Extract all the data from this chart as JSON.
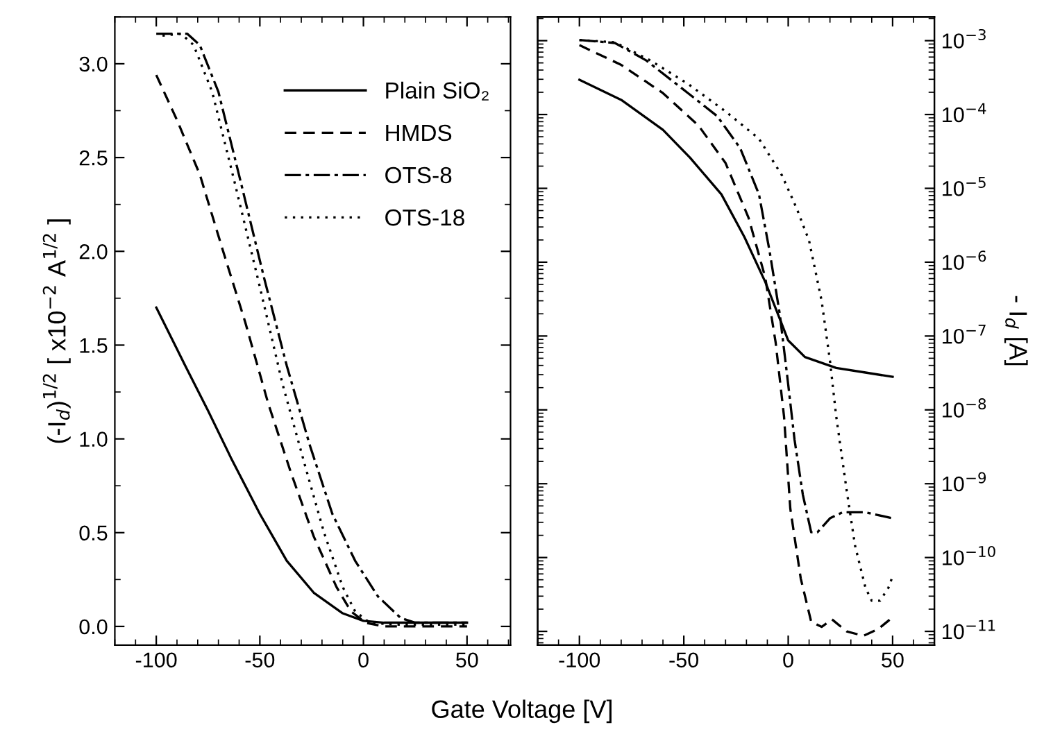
{
  "chart_data": [
    {
      "type": "line",
      "xlabel": "Gate Voltage [V]",
      "ylabel": "(-I$_{d}$)$^{1/2}$ [ x10$^{−2}$ A$^{1/2}$ ]",
      "xlim": [
        -120,
        71
      ],
      "xticks": [
        -100,
        -50,
        0,
        50
      ],
      "ylim": [
        -0.1,
        3.25
      ],
      "yticks": [
        {
          "value": 0,
          "label": "0.0"
        },
        0.5,
        {
          "value": 1,
          "label": "1.0"
        },
        1.5,
        {
          "value": 2,
          "label": "2.0"
        },
        2.5,
        {
          "value": 3,
          "label": "3.0"
        }
      ],
      "legend": "top right",
      "grid": false,
      "tick_labels": true,
      "series": [
        {
          "name": "Plain SiO₂",
          "color": "#000000",
          "line_style": "solid",
          "x": [
            -100,
            -86,
            -75,
            -64,
            -50,
            -37,
            -24,
            -10,
            0,
            10,
            20,
            30,
            40,
            50
          ],
          "values": [
            1.7,
            1.39,
            1.15,
            0.9,
            0.6,
            0.35,
            0.18,
            0.07,
            0.03,
            0.02,
            0.02,
            0.02,
            0.02,
            0.02
          ]
        },
        {
          "name": "HMDS",
          "color": "#000000",
          "line_style": "dashed",
          "x": [
            -100,
            -90,
            -79,
            -68,
            -57,
            -46,
            -35,
            -24,
            -13,
            -6,
            1,
            10,
            20,
            30,
            40,
            50
          ],
          "values": [
            2.94,
            2.7,
            2.41,
            2.01,
            1.62,
            1.19,
            0.82,
            0.48,
            0.21,
            0.08,
            0.02,
            0.0,
            0.0,
            0.0,
            0.0,
            0.0
          ]
        },
        {
          "name": "OTS-8",
          "color": "#000000",
          "line_style": "dashdot",
          "x": [
            -100,
            -85,
            -79,
            -70,
            -59,
            -48,
            -37,
            -26,
            -15,
            -4,
            7,
            18,
            25,
            35,
            50
          ],
          "values": [
            3.16,
            3.16,
            3.1,
            2.85,
            2.36,
            1.86,
            1.39,
            0.97,
            0.6,
            0.35,
            0.16,
            0.045,
            0.02,
            0.02,
            0.02
          ]
        },
        {
          "name": "OTS-18",
          "color": "#000000",
          "line_style": "dotted",
          "x": [
            -97,
            -88,
            -82,
            -73,
            -62,
            -50,
            -39,
            -28,
            -19,
            -10,
            -4,
            3,
            15,
            30,
            50
          ],
          "values": [
            3.15,
            3.16,
            3.1,
            2.85,
            2.36,
            1.81,
            1.29,
            0.85,
            0.5,
            0.21,
            0.08,
            0.02,
            0.01,
            0.01,
            0.01
          ]
        }
      ]
    },
    {
      "type": "line",
      "y2label": "- I$_{d}$ [A]",
      "log": "y2",
      "tick_labels": "y2",
      "xlim": [
        -120,
        70
      ],
      "xticks": [
        -100,
        -50,
        0,
        50
      ],
      "y2lim": [
        6.5e-12,
        0.0021
      ],
      "y2ticks": [
        {
          "value": 0.001,
          "label": "10$^{−3}$"
        },
        {
          "value": 0.0001,
          "label": "10$^{−4}$"
        },
        {
          "value": 1e-05,
          "label": "10$^{−5}$"
        },
        {
          "value": 1e-06,
          "label": "10$^{−6}$"
        },
        {
          "value": 1e-07,
          "label": "10$^{−7}$"
        },
        {
          "value": 1e-08,
          "label": "10$^{−8}$"
        },
        {
          "value": 1e-09,
          "label": "10$^{−9}$"
        },
        {
          "value": 1e-10,
          "label": "10$^{−10}$"
        },
        {
          "value": 1e-11,
          "label": "10$^{−11}$"
        }
      ],
      "grid": false,
      "legend": false,
      "series": [
        {
          "axis": "y2",
          "color": "#000000",
          "line_style": "solid",
          "x": [
            -100,
            -80,
            -60,
            -47,
            -32,
            -21,
            -11,
            -4,
            0,
            8,
            23,
            37,
            50
          ],
          "values": [
            0.000295,
            0.000158,
            6.2e-05,
            2.6e-05,
            8.3e-06,
            2.2e-06,
            5.4e-07,
            1.7e-07,
            8.7e-08,
            5.2e-08,
            3.7e-08,
            3.2e-08,
            2.8e-08
          ]
        },
        {
          "axis": "y2",
          "color": "#000000",
          "line_style": "dashed",
          "x": [
            -100,
            -80,
            -60,
            -43,
            -30,
            -19,
            -11,
            -6,
            -2,
            1,
            6,
            11,
            16,
            21,
            28,
            36,
            43,
            50
          ],
          "values": [
            0.00087,
            0.00047,
            0.000195,
            7.1e-05,
            2.2e-05,
            4e-06,
            6.2e-07,
            8.1e-08,
            8.1e-09,
            4.6e-10,
            5.2e-11,
            1.35e-11,
            1.15e-11,
            1.45e-11,
            1e-11,
            8.7e-12,
            1.07e-11,
            1.55e-11
          ]
        },
        {
          "axis": "y2",
          "color": "#000000",
          "line_style": "dashdot",
          "x": [
            -100,
            -83,
            -68,
            -48,
            -34,
            -23,
            -14,
            -9,
            -4,
            0,
            3,
            7,
            11,
            14,
            20,
            26,
            37,
            50
          ],
          "values": [
            0.00102,
            0.00093,
            0.00054,
            0.000195,
            9.5e-05,
            3.5e-05,
            8.3e-06,
            1.45e-06,
            1.95e-07,
            2.2e-08,
            4e-09,
            7.1e-10,
            2.2e-10,
            2.2e-10,
            3.4e-10,
            4.1e-10,
            4.1e-10,
            3.4e-10
          ]
        },
        {
          "axis": "y2",
          "color": "#000000",
          "line_style": "dotted",
          "x": [
            -100,
            -83,
            -66,
            -48,
            -30,
            -14,
            -3,
            4,
            10,
            16,
            20,
            23,
            28,
            32,
            37,
            40,
            44,
            48,
            50
          ],
          "values": [
            0.00102,
            0.00095,
            0.00054,
            0.00026,
            0.00011,
            4.7e-05,
            1.5e-05,
            5.4e-06,
            1.95e-06,
            3e-07,
            4.6e-08,
            8.1e-09,
            8.1e-10,
            1.45e-10,
            3.9e-11,
            2.6e-11,
            2.6e-11,
            3.9e-11,
            5.6e-11
          ]
        }
      ]
    }
  ]
}
